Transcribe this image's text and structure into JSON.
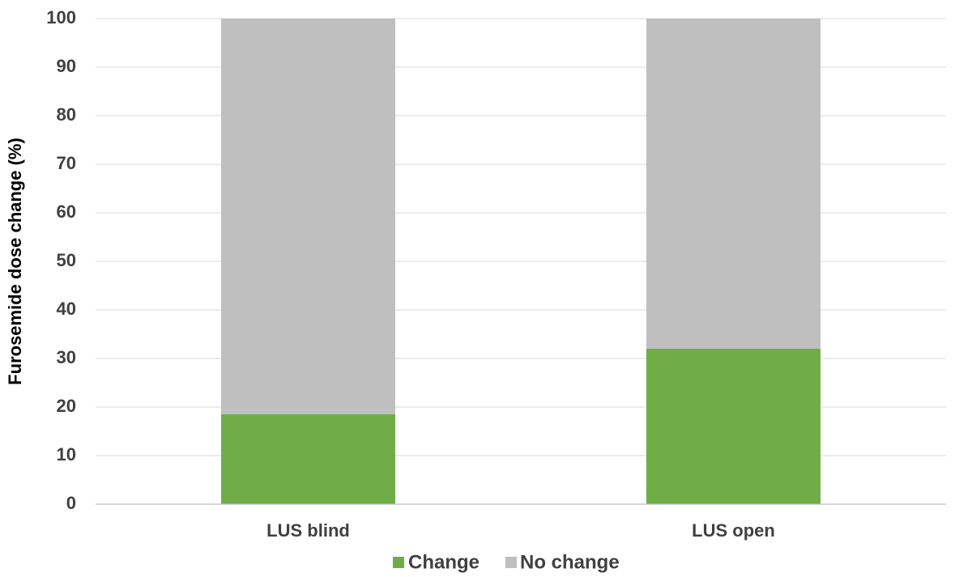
{
  "chart_data": {
    "type": "bar",
    "stacked": true,
    "title": "",
    "xlabel": "",
    "ylabel": "Furosemide dose change (%)",
    "ylim": [
      0,
      100
    ],
    "y_ticks": [
      0,
      10,
      20,
      30,
      40,
      50,
      60,
      70,
      80,
      90,
      100
    ],
    "categories": [
      "LUS blind",
      "LUS open"
    ],
    "series": [
      {
        "name": "Change",
        "color": "#70ad47",
        "values": [
          18.5,
          32
        ]
      },
      {
        "name": "No change",
        "color": "#bfbfbf",
        "values": [
          81.5,
          68
        ]
      }
    ],
    "grid": true,
    "legend": "bottom-center"
  }
}
